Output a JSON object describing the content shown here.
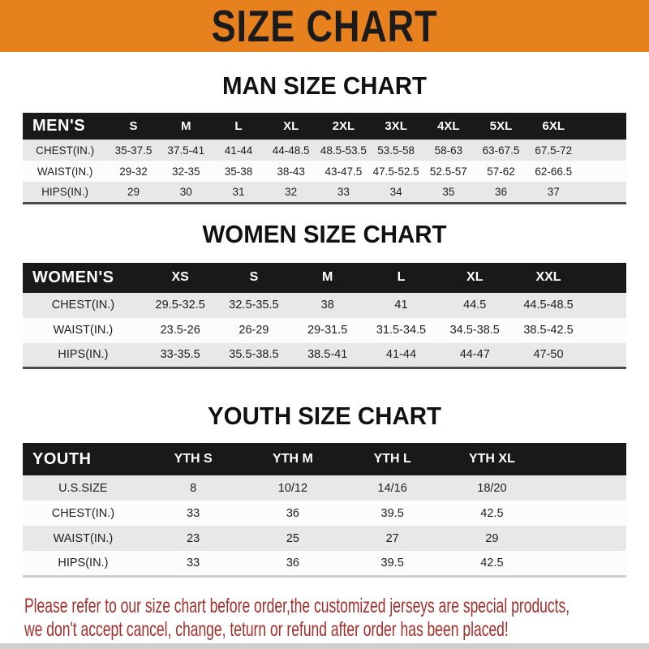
{
  "banner": {
    "title": "SIZE CHART"
  },
  "sections": [
    {
      "key": "men",
      "heading": "MAN SIZE CHART",
      "group_label": "MEN'S",
      "columns": [
        "S",
        "M",
        "L",
        "XL",
        "2XL",
        "3XL",
        "4XL",
        "5XL",
        "6XL"
      ],
      "rows": [
        {
          "label": "CHEST(IN.)",
          "values": [
            "35-37.5",
            "37.5-41",
            "41-44",
            "44-48.5",
            "48.5-53.5",
            "53.5-58",
            "58-63",
            "63-67.5",
            "67.5-72"
          ]
        },
        {
          "label": "WAIST(IN.)",
          "values": [
            "29-32",
            "32-35",
            "35-38",
            "38-43",
            "43-47.5",
            "47.5-52.5",
            "52.5-57",
            "57-62",
            "62-66.5"
          ]
        },
        {
          "label": "HIPS(IN.)",
          "values": [
            "29",
            "30",
            "31",
            "32",
            "33",
            "34",
            "35",
            "36",
            "37"
          ]
        }
      ]
    },
    {
      "key": "women",
      "heading": "WOMEN SIZE CHART",
      "group_label": "WOMEN'S",
      "columns": [
        "XS",
        "S",
        "M",
        "L",
        "XL",
        "XXL"
      ],
      "rows": [
        {
          "label": "CHEST(IN.)",
          "values": [
            "29.5-32.5",
            "32.5-35.5",
            "38",
            "41",
            "44.5",
            "44.5-48.5"
          ]
        },
        {
          "label": "WAIST(IN.)",
          "values": [
            "23.5-26",
            "26-29",
            "29-31.5",
            "31.5-34.5",
            "34.5-38.5",
            "38.5-42.5"
          ]
        },
        {
          "label": "HIPS(IN.)",
          "values": [
            "33-35.5",
            "35.5-38.5",
            "38.5-41",
            "41-44",
            "44-47",
            "47-50"
          ]
        }
      ]
    },
    {
      "key": "youth",
      "heading": "YOUTH SIZE CHART",
      "group_label": "YOUTH",
      "columns": [
        "YTH S",
        "YTH M",
        "YTH L",
        "YTH XL"
      ],
      "rows": [
        {
          "label": "U.S.SIZE",
          "values": [
            "8",
            "10/12",
            "14/16",
            "18/20"
          ]
        },
        {
          "label": "CHEST(IN.)",
          "values": [
            "33",
            "36",
            "39.5",
            "42.5"
          ]
        },
        {
          "label": "WAIST(IN.)",
          "values": [
            "23",
            "25",
            "27",
            "29"
          ]
        },
        {
          "label": "HIPS(IN.)",
          "values": [
            "33",
            "36",
            "39.5",
            "42.5"
          ]
        }
      ]
    }
  ],
  "footer": {
    "line1": "Please refer to our size chart before order,the customized jerseys are special products,",
    "line2": "we don't accept cancel, change, teturn or refund after order has been placed!"
  },
  "colors": {
    "banner_bg": "#E7811D",
    "table_header_bg": "#191919",
    "row_alt_bg": "#E8E8E8",
    "footer_text": "#A42E2A"
  }
}
